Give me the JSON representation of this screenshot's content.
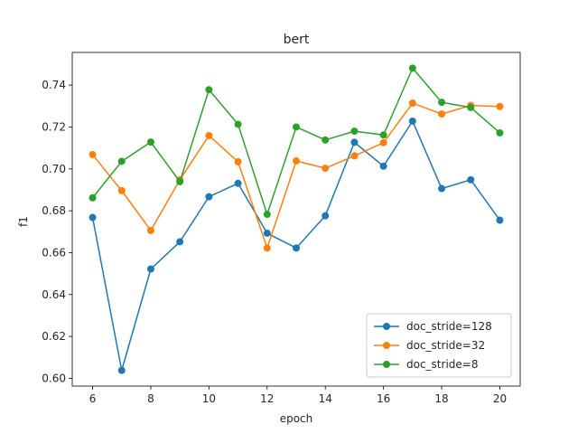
{
  "chart_data": {
    "type": "line",
    "title": "bert",
    "xlabel": "epoch",
    "ylabel": "f1",
    "xlim": [
      5.3,
      20.7
    ],
    "ylim": [
      0.5963,
      0.7556
    ],
    "xticks": [
      6,
      8,
      10,
      12,
      14,
      16,
      18,
      20
    ],
    "yticks": [
      0.6,
      0.62,
      0.64,
      0.66,
      0.68,
      0.7,
      0.72,
      0.74
    ],
    "grid": false,
    "legend_position": "lower-right",
    "x": [
      6,
      7,
      8,
      9,
      10,
      11,
      12,
      13,
      14,
      15,
      16,
      17,
      18,
      19,
      20
    ],
    "series": [
      {
        "name": "doc_stride=128",
        "color": "#1f77b4",
        "values": [
          0.6768,
          0.6038,
          0.6522,
          0.6652,
          0.6867,
          0.6931,
          0.6693,
          0.6622,
          0.6776,
          0.7127,
          0.7013,
          0.7228,
          0.6906,
          0.6948,
          0.6755
        ]
      },
      {
        "name": "doc_stride=32",
        "color": "#ff7f0e",
        "values": [
          0.7068,
          0.6896,
          0.6706,
          0.6948,
          0.7159,
          0.7034,
          0.6622,
          0.7038,
          0.7003,
          0.7062,
          0.7125,
          0.7314,
          0.7262,
          0.7303,
          0.7298
        ]
      },
      {
        "name": "doc_stride=8",
        "color": "#2ca02c",
        "values": [
          0.6862,
          0.7036,
          0.7128,
          0.6939,
          0.7378,
          0.7213,
          0.6783,
          0.72,
          0.7138,
          0.718,
          0.7162,
          0.7481,
          0.7318,
          0.7293,
          0.7172
        ]
      }
    ]
  }
}
